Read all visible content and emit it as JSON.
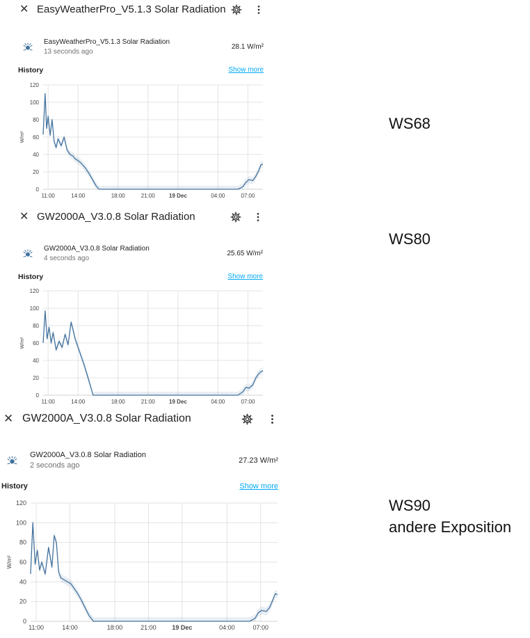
{
  "dialogs": [
    {
      "title": "EasyWeatherPro_V5.1.3 Solar Radiation",
      "entity_name": "EasyWeatherPro_V5.1.3 Solar Radiation",
      "last_changed": "13 seconds ago",
      "value": "28.1 W/m²",
      "history_label": "History",
      "show_more": "Show more",
      "icon": "solar-radiation-icon",
      "chart_data": {
        "type": "line",
        "ylabel": "W/m²",
        "ylim": [
          0,
          120
        ],
        "yticks": [
          "0",
          "20",
          "40",
          "60",
          "80",
          "100",
          "120"
        ],
        "xticks": [
          "11:00",
          "14:00",
          "18:00",
          "21:00",
          "19 Dec",
          "04:00",
          "07:00"
        ],
        "x_hours_since_1030": [
          0,
          0.2,
          0.35,
          0.5,
          0.7,
          0.9,
          1.1,
          1.3,
          1.5,
          1.8,
          2.1,
          2.4,
          2.7,
          3.0,
          3.2,
          3.5,
          3.8,
          4.2,
          4.6,
          5.0,
          5.3,
          5.6,
          6.0,
          6.5,
          7.0,
          10,
          14,
          17,
          19.5,
          20,
          20.3,
          20.6,
          21,
          21.3,
          21.6,
          21.8,
          22
        ],
        "values": [
          63,
          110,
          70,
          84,
          62,
          80,
          55,
          48,
          58,
          50,
          60,
          45,
          40,
          38,
          35,
          33,
          30,
          25,
          18,
          10,
          4,
          0,
          0,
          0,
          0,
          0,
          0,
          0,
          0,
          3,
          8,
          11,
          10,
          15,
          22,
          28,
          29
        ]
      }
    },
    {
      "title": "GW2000A_V3.0.8 Solar Radiation",
      "entity_name": "GW2000A_V3.0.8 Solar Radiation",
      "last_changed": "4 seconds ago",
      "value": "25.65 W/m²",
      "history_label": "History",
      "show_more": "Show more",
      "icon": "solar-radiation-icon",
      "chart_data": {
        "type": "line",
        "ylabel": "W/m²",
        "ylim": [
          0,
          120
        ],
        "yticks": [
          "0",
          "20",
          "40",
          "60",
          "80",
          "100",
          "120"
        ],
        "xticks": [
          "11:00",
          "14:00",
          "18:00",
          "21:00",
          "19 Dec",
          "04:00",
          "07:00"
        ],
        "x_hours_since_1030": [
          0,
          0.2,
          0.4,
          0.6,
          0.8,
          1.0,
          1.3,
          1.6,
          1.9,
          2.2,
          2.5,
          2.8,
          3.0,
          3.2,
          3.5,
          3.8,
          4.1,
          4.5,
          5.0,
          5.5,
          6.0,
          7.0,
          10,
          14,
          17,
          19.5,
          20,
          20.3,
          20.6,
          21,
          21.3,
          21.6,
          21.8,
          22
        ],
        "values": [
          60,
          97,
          65,
          78,
          60,
          72,
          52,
          62,
          55,
          70,
          58,
          84,
          75,
          65,
          55,
          45,
          35,
          20,
          0,
          0,
          0,
          0,
          0,
          0,
          0,
          0,
          4,
          9,
          8,
          12,
          20,
          25,
          27,
          28
        ]
      }
    },
    {
      "title": "GW2000A_V3.0.8 Solar Radiation",
      "entity_name": "GW2000A_V3.0.8 Solar Radiation",
      "last_changed": "2 seconds ago",
      "value": "27.23 W/m²",
      "history_label": "History",
      "show_more": "Show more",
      "icon": "solar-radiation-icon",
      "chart_data": {
        "type": "line",
        "ylabel": "W/m²",
        "ylim": [
          0,
          120
        ],
        "yticks": [
          "0",
          "20",
          "40",
          "60",
          "80",
          "100",
          "120"
        ],
        "xticks": [
          "11:00",
          "14:00",
          "18:00",
          "21:00",
          "19 Dec",
          "04:00",
          "07:00"
        ],
        "x_hours_since_1030": [
          0,
          0.2,
          0.4,
          0.6,
          0.8,
          1.0,
          1.3,
          1.6,
          1.9,
          2.1,
          2.3,
          2.5,
          2.7,
          3.0,
          3.3,
          3.6,
          3.9,
          4.2,
          4.5,
          4.8,
          5.2,
          5.6,
          6.0,
          7.0,
          10,
          14,
          17,
          19.5,
          20,
          20.3,
          20.6,
          21,
          21.3,
          21.6,
          21.8,
          22
        ],
        "values": [
          48,
          100,
          58,
          72,
          52,
          60,
          48,
          75,
          55,
          87,
          80,
          50,
          44,
          42,
          40,
          38,
          33,
          28,
          22,
          15,
          6,
          0,
          0,
          0,
          0,
          0,
          0,
          0,
          3,
          9,
          11,
          10,
          14,
          22,
          28,
          27
        ]
      }
    }
  ],
  "annotations": {
    "ws68": "WS68",
    "ws80": "WS80",
    "ws90_line1": "WS90",
    "ws90_line2": "andere Exposition"
  }
}
